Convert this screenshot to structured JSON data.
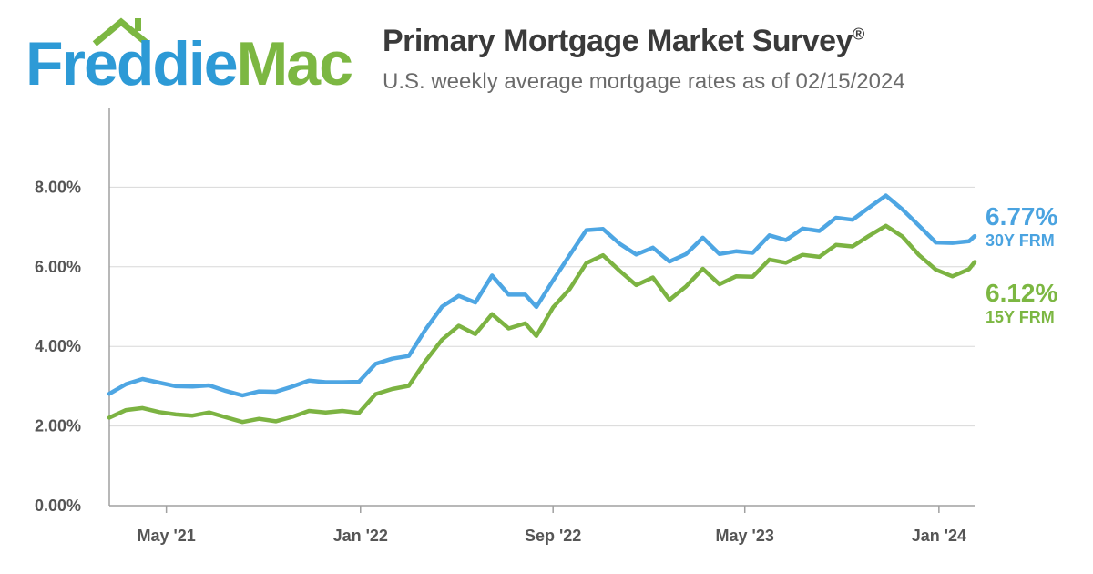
{
  "header": {
    "logo_part1": "Freddie",
    "logo_part2": "Mac",
    "title": "Primary Mortgage Market Survey",
    "title_mark": "®",
    "subtitle": "U.S. weekly average mortgage rates as of 02/15/2024"
  },
  "colors": {
    "series_30y": "#4ea6e3",
    "series_15y": "#7cb342",
    "grid": "#d8d8d8",
    "axis": "#a0a0a0",
    "tick_text": "#555555"
  },
  "end_labels": {
    "y30_value": "6.77%",
    "y30_name": "30Y FRM",
    "y15_value": "6.12%",
    "y15_name": "15Y FRM"
  },
  "chart_data": {
    "type": "line",
    "title": "",
    "xlabel": "",
    "ylabel": "",
    "ylim": [
      0,
      10
    ],
    "xlim": [
      "2021-02-18",
      "2024-02-15"
    ],
    "y_ticks": [
      {
        "value": 0,
        "label": "0.00%"
      },
      {
        "value": 2,
        "label": "2.00%"
      },
      {
        "value": 4,
        "label": "4.00%"
      },
      {
        "value": 6,
        "label": "6.00%"
      },
      {
        "value": 8,
        "label": "8.00%"
      }
    ],
    "x_ticks": [
      {
        "date": "2021-05-01",
        "label": "May '21"
      },
      {
        "date": "2022-01-01",
        "label": "Jan '22"
      },
      {
        "date": "2022-09-01",
        "label": "Sep '22"
      },
      {
        "date": "2023-05-01",
        "label": "May '23"
      },
      {
        "date": "2024-01-01",
        "label": "Jan '24"
      }
    ],
    "grid": true,
    "legend": "none (end-of-line labels on right)",
    "series": [
      {
        "name": "30Y FRM",
        "points": [
          [
            "2021-02-18",
            2.81
          ],
          [
            "2021-03-11",
            3.05
          ],
          [
            "2021-04-01",
            3.18
          ],
          [
            "2021-04-22",
            3.09
          ],
          [
            "2021-05-13",
            3.0
          ],
          [
            "2021-06-03",
            2.99
          ],
          [
            "2021-06-24",
            3.02
          ],
          [
            "2021-07-15",
            2.88
          ],
          [
            "2021-08-05",
            2.77
          ],
          [
            "2021-08-26",
            2.87
          ],
          [
            "2021-09-16",
            2.86
          ],
          [
            "2021-10-07",
            2.99
          ],
          [
            "2021-10-28",
            3.14
          ],
          [
            "2021-11-18",
            3.1
          ],
          [
            "2021-12-09",
            3.1
          ],
          [
            "2021-12-30",
            3.11
          ],
          [
            "2022-01-20",
            3.56
          ],
          [
            "2022-02-10",
            3.69
          ],
          [
            "2022-03-03",
            3.76
          ],
          [
            "2022-03-24",
            4.42
          ],
          [
            "2022-04-14",
            5.0
          ],
          [
            "2022-05-05",
            5.27
          ],
          [
            "2022-05-26",
            5.1
          ],
          [
            "2022-06-16",
            5.78
          ],
          [
            "2022-07-07",
            5.3
          ],
          [
            "2022-07-28",
            5.3
          ],
          [
            "2022-08-11",
            4.99
          ],
          [
            "2022-09-01",
            5.66
          ],
          [
            "2022-09-22",
            6.29
          ],
          [
            "2022-10-13",
            6.92
          ],
          [
            "2022-11-03",
            6.95
          ],
          [
            "2022-11-24",
            6.58
          ],
          [
            "2022-12-15",
            6.31
          ],
          [
            "2023-01-05",
            6.48
          ],
          [
            "2023-01-26",
            6.13
          ],
          [
            "2023-02-16",
            6.32
          ],
          [
            "2023-03-09",
            6.73
          ],
          [
            "2023-03-30",
            6.32
          ],
          [
            "2023-04-20",
            6.39
          ],
          [
            "2023-05-11",
            6.35
          ],
          [
            "2023-06-01",
            6.79
          ],
          [
            "2023-06-22",
            6.67
          ],
          [
            "2023-07-13",
            6.96
          ],
          [
            "2023-08-03",
            6.9
          ],
          [
            "2023-08-24",
            7.23
          ],
          [
            "2023-09-14",
            7.18
          ],
          [
            "2023-10-05",
            7.49
          ],
          [
            "2023-10-26",
            7.79
          ],
          [
            "2023-11-16",
            7.44
          ],
          [
            "2023-12-07",
            7.03
          ],
          [
            "2023-12-28",
            6.61
          ],
          [
            "2024-01-18",
            6.6
          ],
          [
            "2024-02-08",
            6.64
          ],
          [
            "2024-02-15",
            6.77
          ]
        ]
      },
      {
        "name": "15Y FRM",
        "points": [
          [
            "2021-02-18",
            2.21
          ],
          [
            "2021-03-11",
            2.4
          ],
          [
            "2021-04-01",
            2.45
          ],
          [
            "2021-04-22",
            2.35
          ],
          [
            "2021-05-13",
            2.29
          ],
          [
            "2021-06-03",
            2.26
          ],
          [
            "2021-06-24",
            2.34
          ],
          [
            "2021-07-15",
            2.22
          ],
          [
            "2021-08-05",
            2.1
          ],
          [
            "2021-08-26",
            2.18
          ],
          [
            "2021-09-16",
            2.12
          ],
          [
            "2021-10-07",
            2.23
          ],
          [
            "2021-10-28",
            2.38
          ],
          [
            "2021-11-18",
            2.34
          ],
          [
            "2021-12-09",
            2.38
          ],
          [
            "2021-12-30",
            2.33
          ],
          [
            "2022-01-20",
            2.8
          ],
          [
            "2022-02-10",
            2.93
          ],
          [
            "2022-03-03",
            3.01
          ],
          [
            "2022-03-24",
            3.63
          ],
          [
            "2022-04-14",
            4.17
          ],
          [
            "2022-05-05",
            4.52
          ],
          [
            "2022-05-26",
            4.31
          ],
          [
            "2022-06-16",
            4.81
          ],
          [
            "2022-07-07",
            4.45
          ],
          [
            "2022-07-28",
            4.58
          ],
          [
            "2022-08-11",
            4.26
          ],
          [
            "2022-09-01",
            4.98
          ],
          [
            "2022-09-22",
            5.44
          ],
          [
            "2022-10-13",
            6.09
          ],
          [
            "2022-11-03",
            6.29
          ],
          [
            "2022-11-24",
            5.9
          ],
          [
            "2022-12-15",
            5.54
          ],
          [
            "2023-01-05",
            5.73
          ],
          [
            "2023-01-26",
            5.17
          ],
          [
            "2023-02-16",
            5.51
          ],
          [
            "2023-03-09",
            5.95
          ],
          [
            "2023-03-30",
            5.56
          ],
          [
            "2023-04-20",
            5.76
          ],
          [
            "2023-05-11",
            5.75
          ],
          [
            "2023-06-01",
            6.18
          ],
          [
            "2023-06-22",
            6.1
          ],
          [
            "2023-07-13",
            6.3
          ],
          [
            "2023-08-03",
            6.25
          ],
          [
            "2023-08-24",
            6.55
          ],
          [
            "2023-09-14",
            6.51
          ],
          [
            "2023-10-05",
            6.78
          ],
          [
            "2023-10-26",
            7.03
          ],
          [
            "2023-11-16",
            6.76
          ],
          [
            "2023-12-07",
            6.29
          ],
          [
            "2023-12-28",
            5.93
          ],
          [
            "2024-01-18",
            5.76
          ],
          [
            "2024-02-08",
            5.94
          ],
          [
            "2024-02-15",
            6.12
          ]
        ]
      }
    ]
  }
}
